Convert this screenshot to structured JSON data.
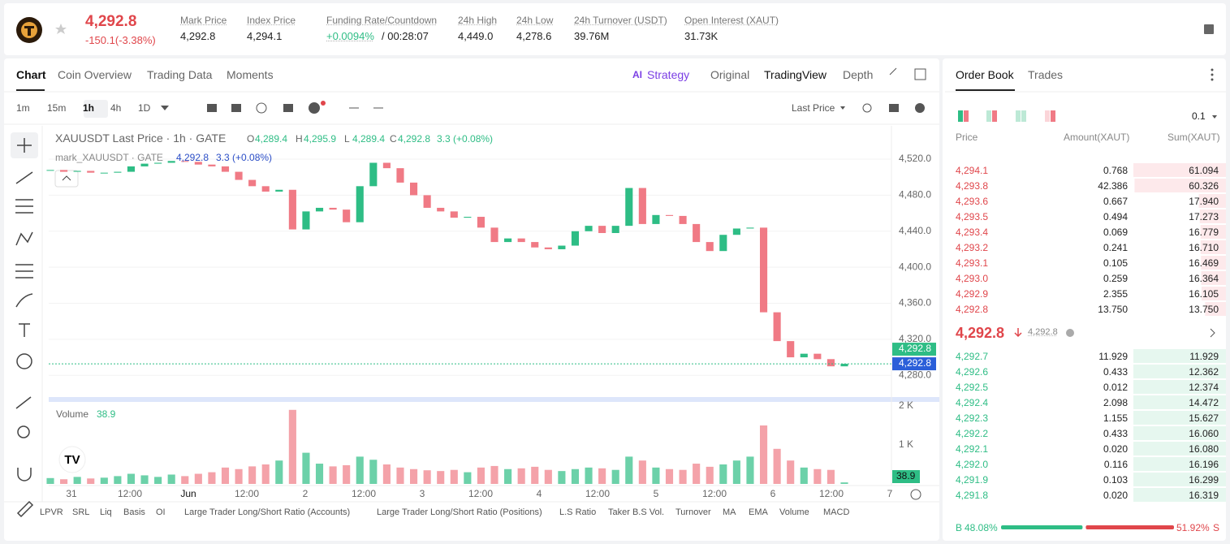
{
  "header": {
    "price": "4,292.8",
    "change": "-150.1(-3.38%)",
    "stats": [
      {
        "label": "Mark Price",
        "value": "4,292.8"
      },
      {
        "label": "Index Price",
        "value": "4,294.1"
      },
      {
        "label": "Funding Rate/Countdown",
        "value": "+0.0094%",
        "value2": "/ 00:28:07"
      },
      {
        "label": "24h High",
        "value": "4,449.0"
      },
      {
        "label": "24h Low",
        "value": "4,278.6"
      },
      {
        "label": "24h Turnover (USDT)",
        "value": "39.76M"
      },
      {
        "label": "Open Interest (XAUT)",
        "value": "31.73K"
      }
    ]
  },
  "tabs": {
    "left": [
      "Chart",
      "Coin Overview",
      "Trading Data",
      "Moments"
    ],
    "right": [
      "Strategy",
      "Original",
      "TradingView",
      "Depth"
    ]
  },
  "intervals": [
    "1m",
    "15m",
    "1h",
    "4h",
    "1D"
  ],
  "price_type": "Last Price",
  "legend": {
    "title": "XAUUSDT Last Price · 1h · GATE",
    "o": "O",
    "o_val": "4,289.4",
    "h": "H",
    "h_val": "4,295.9",
    "l": "L",
    "l_val": "4,289.4",
    "c": "C",
    "c_val": "4,292.8",
    "change": "3.3 (+0.08%)",
    "mark_title": "mark_XAUUSDT · GATE",
    "mark_val": "4,292.8",
    "mark_change": "3.3 (+0.08%)",
    "volume_title": "Volume",
    "volume_val": "38.9"
  },
  "chart_data": {
    "type": "candlestick",
    "values": [
      4508,
      4506,
      4507,
      4505,
      4505,
      4506,
      4512,
      4515,
      4516,
      4518,
      4517,
      4514,
      4512,
      4506,
      4497,
      4490,
      4484,
      4486,
      4442,
      4462,
      4466,
      4464,
      4450,
      4490,
      4516,
      4510,
      4494,
      4480,
      4466,
      4462,
      4455,
      4456,
      4444,
      4428,
      4432,
      4428,
      4422,
      4420,
      4424,
      4440,
      4446,
      4438,
      4446,
      4488,
      4448,
      4458,
      4457,
      4448,
      4428,
      4418,
      4436,
      4443,
      4444,
      4350,
      4318,
      4300,
      4304,
      4298,
      4290,
      4292.8
    ],
    "volume": [
      150,
      120,
      180,
      140,
      160,
      200,
      260,
      220,
      180,
      240,
      200,
      260,
      300,
      420,
      380,
      450,
      500,
      600,
      1900,
      800,
      520,
      450,
      480,
      700,
      620,
      500,
      420,
      380,
      350,
      330,
      360,
      300,
      420,
      460,
      380,
      400,
      440,
      360,
      330,
      380,
      420,
      400,
      360,
      700,
      600,
      420,
      380,
      360,
      520,
      440,
      500,
      600,
      700,
      1500,
      900,
      600,
      420,
      380,
      360,
      38.9
    ],
    "ylim": [
      4255,
      4557
    ],
    "yticks": [
      {
        "value": 4520,
        "label": "4,520.0"
      },
      {
        "value": 4480,
        "label": "4,480.0"
      },
      {
        "value": 4440,
        "label": "4,440.0"
      },
      {
        "value": 4400,
        "label": "4,400.0"
      },
      {
        "value": 4360,
        "label": "4,360.0"
      },
      {
        "value": 4320,
        "label": "4,320.0"
      },
      {
        "value": 4280,
        "label": "4,280.0"
      }
    ],
    "last_value": 4292.8,
    "last_label": "4,292.8",
    "volume_ylim": [
      0,
      2000
    ],
    "volume_ticks": [
      {
        "value": 2000,
        "label": "2 K"
      },
      {
        "value": 1000,
        "label": "1 K"
      }
    ],
    "last_volume_label": "38.9",
    "x_labels": [
      "31",
      "12:00",
      "Jun",
      "12:00",
      "2",
      "12:00",
      "3",
      "12:00",
      "4",
      "12:00",
      "5",
      "12:00",
      "6",
      "12:00",
      "7"
    ],
    "up_color": "#2ebd85",
    "down_color": "#f07a85"
  },
  "indicators": [
    "LPVR",
    "SRL",
    "Liq",
    "Basis",
    "OI",
    "Large Trader Long/Short Ratio (Accounts)",
    "Large Trader Long/Short Ratio (Positions)",
    "L.S Ratio",
    "Taker B.S Vol.",
    "Turnover",
    "MA",
    "EMA",
    "Volume",
    "MACD"
  ],
  "order_book": {
    "tabs": [
      "Order Book",
      "Trades"
    ],
    "precision": "0.1",
    "columns": [
      "Price",
      "Amount(XAUT)",
      "Sum(XAUT)"
    ],
    "asks": [
      [
        "4,294.1",
        "0.768",
        "61.094"
      ],
      [
        "4,293.8",
        "42.386",
        "60.326"
      ],
      [
        "4,293.6",
        "0.667",
        "17.940"
      ],
      [
        "4,293.5",
        "0.494",
        "17.273"
      ],
      [
        "4,293.4",
        "0.069",
        "16.779"
      ],
      [
        "4,293.2",
        "0.241",
        "16.710"
      ],
      [
        "4,293.1",
        "0.105",
        "16.469"
      ],
      [
        "4,293.0",
        "0.259",
        "16.364"
      ],
      [
        "4,292.9",
        "2.355",
        "16.105"
      ],
      [
        "4,292.8",
        "13.750",
        "13.750"
      ]
    ],
    "mid_price": "4,292.8",
    "mark_price": "4,292.8",
    "bids": [
      [
        "4,292.7",
        "11.929",
        "11.929"
      ],
      [
        "4,292.6",
        "0.433",
        "12.362"
      ],
      [
        "4,292.5",
        "0.012",
        "12.374"
      ],
      [
        "4,292.4",
        "2.098",
        "14.472"
      ],
      [
        "4,292.3",
        "1.155",
        "15.627"
      ],
      [
        "4,292.2",
        "0.433",
        "16.060"
      ],
      [
        "4,292.1",
        "0.020",
        "16.080"
      ],
      [
        "4,292.0",
        "0.116",
        "16.196"
      ],
      [
        "4,291.9",
        "0.103",
        "16.299"
      ],
      [
        "4,291.8",
        "0.020",
        "16.319"
      ]
    ],
    "buy_tag": "B",
    "sell_tag": "S",
    "buy_ratio": 48.08,
    "sell_ratio": 51.92,
    "value_labels": [
      "48.08%",
      "51.92%"
    ]
  }
}
